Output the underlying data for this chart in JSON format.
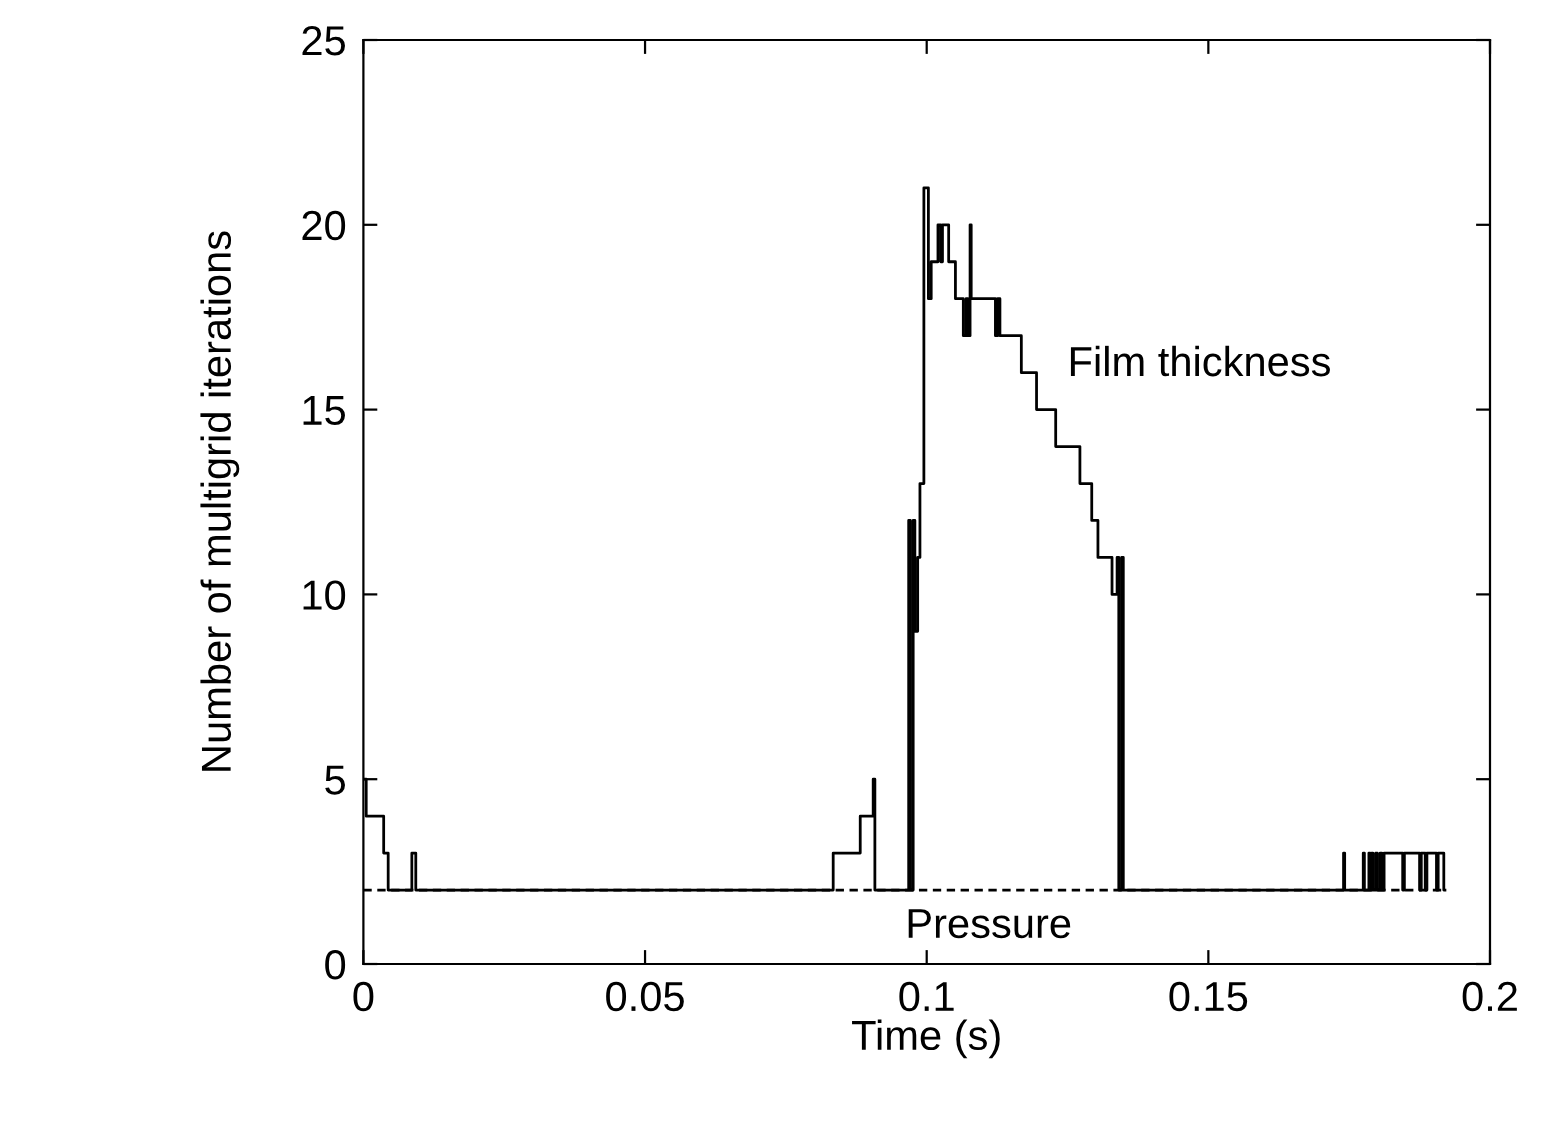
{
  "chart_data": {
    "type": "step",
    "xlabel": "Time (s)",
    "ylabel": "Number of multigrid iterations",
    "xlim": [
      0,
      0.2
    ],
    "ylim": [
      0,
      25
    ],
    "xticks": [
      0,
      0.05,
      0.1,
      0.15,
      0.2
    ],
    "yticks": [
      0,
      5,
      10,
      15,
      20,
      25
    ],
    "grid": false,
    "legend": false,
    "series": [
      {
        "name": "Film thickness",
        "color": "#000000",
        "line_style": "solid",
        "x": [
          0,
          0.0005,
          0.0036,
          0.0044,
          0.0086,
          0.0093,
          0.0834,
          0.0882,
          0.0905,
          0.0908,
          0.0968,
          0.0971,
          0.0976,
          0.0979,
          0.0984,
          0.0988,
          0.0995,
          0.1003,
          0.1008,
          0.102,
          0.1025,
          0.1028,
          0.1039,
          0.1051,
          0.1065,
          0.107,
          0.1073,
          0.1077,
          0.1079,
          0.1122,
          0.1126,
          0.113,
          0.1168,
          0.1195,
          0.1229,
          0.1272,
          0.1293,
          0.1304,
          0.1329,
          0.1338,
          0.1341,
          0.1346,
          0.1349,
          0.174,
          0.1742,
          0.1775,
          0.1777,
          0.1785,
          0.1787,
          0.179,
          0.1792,
          0.1797,
          0.18,
          0.1805,
          0.1808,
          0.1812,
          0.1845,
          0.1848,
          0.1875,
          0.1878,
          0.1885,
          0.1888,
          0.1905,
          0.1908,
          0.1918,
          0.192
        ],
        "values": [
          5,
          4,
          3,
          2,
          3,
          2,
          3,
          4,
          5,
          2,
          12,
          2,
          12,
          9,
          11,
          13,
          21,
          18,
          19,
          20,
          19,
          20,
          19,
          18,
          17,
          18,
          17,
          20,
          18,
          17,
          18,
          17,
          16,
          15,
          14,
          13,
          12,
          11,
          10,
          11,
          2,
          11,
          2,
          3,
          2,
          3,
          2,
          3,
          2,
          3,
          2,
          3,
          2,
          3,
          2,
          3,
          2,
          3,
          2,
          3,
          2,
          3,
          2,
          3,
          2,
          2
        ]
      },
      {
        "name": "Pressure",
        "color": "#000000",
        "line_style": "dashed",
        "x": [
          0,
          0.192
        ],
        "values": [
          2,
          2
        ]
      }
    ]
  }
}
